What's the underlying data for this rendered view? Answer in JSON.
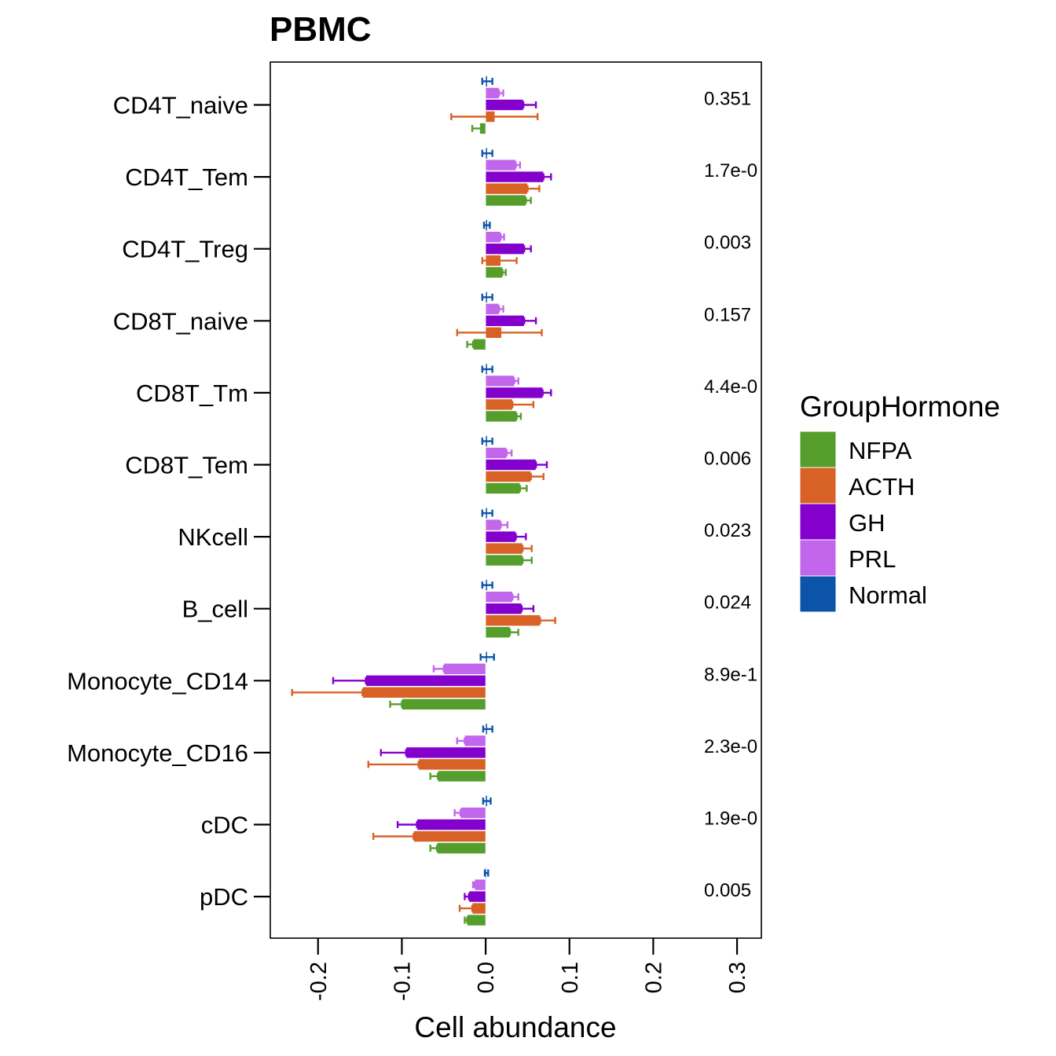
{
  "chart_data": {
    "type": "bar",
    "orientation": "horizontal",
    "title": "PBMC",
    "xlabel": "Cell abundance",
    "ylabel": "",
    "xlim": [
      -0.257,
      0.329
    ],
    "xticks": [
      -0.2,
      -0.1,
      0.0,
      0.1,
      0.2,
      0.3
    ],
    "xtick_labels": [
      "-0.2",
      "-0.1",
      "0.0",
      "0.1",
      "0.2",
      "0.3"
    ],
    "grid": false,
    "categories": [
      "CD4T_naive",
      "CD4T_Tem",
      "CD4T_Treg",
      "CD8T_naive",
      "CD8T_Tm",
      "CD8T_Tem",
      "NKcell",
      "B_cell",
      "Monocyte_CD14",
      "Monocyte_CD16",
      "cDC",
      "pDC"
    ],
    "pvalues": [
      "0.351",
      "1.7e-0",
      "0.003",
      "0.157",
      "4.4e-0",
      "0.006",
      "0.023",
      "0.024",
      "8.9e-1",
      "2.3e-0",
      "1.9e-0",
      "0.005"
    ],
    "legend": {
      "title": "GroupHormone",
      "placement": "right",
      "entries": [
        "NFPA",
        "ACTH",
        "GH",
        "PRL",
        "Normal"
      ]
    },
    "series": [
      {
        "name": "Normal",
        "color": "#0C54AA",
        "values": [
          0.002,
          0.002,
          0.002,
          0.002,
          0.002,
          0.002,
          0.002,
          0.002,
          0.002,
          0.002,
          0.002,
          0.001
        ],
        "err_low": [
          -0.004,
          -0.004,
          -0.002,
          -0.004,
          -0.004,
          -0.004,
          -0.004,
          -0.004,
          -0.006,
          -0.003,
          -0.003,
          -0.001
        ],
        "err_high": [
          0.008,
          0.008,
          0.005,
          0.008,
          0.008,
          0.008,
          0.008,
          0.008,
          0.01,
          0.008,
          0.006,
          0.003
        ]
      },
      {
        "name": "PRL",
        "color": "#C266EC",
        "values": [
          0.016,
          0.036,
          0.018,
          0.016,
          0.034,
          0.025,
          0.018,
          0.032,
          -0.05,
          -0.025,
          -0.03,
          -0.013
        ],
        "err_low": [
          0.016,
          0.036,
          0.018,
          0.016,
          0.034,
          0.025,
          0.018,
          0.032,
          -0.062,
          -0.034,
          -0.037,
          -0.015
        ],
        "err_high": [
          0.021,
          0.041,
          0.022,
          0.021,
          0.039,
          0.031,
          0.026,
          0.039,
          -0.05,
          -0.025,
          -0.03,
          -0.013
        ]
      },
      {
        "name": "GH",
        "color": "#8400CC",
        "values": [
          0.045,
          0.069,
          0.046,
          0.046,
          0.068,
          0.06,
          0.036,
          0.043,
          -0.143,
          -0.095,
          -0.082,
          -0.02
        ],
        "err_low": [
          0.045,
          0.069,
          0.046,
          0.046,
          0.068,
          0.06,
          0.036,
          0.043,
          -0.182,
          -0.125,
          -0.105,
          -0.025
        ],
        "err_high": [
          0.06,
          0.078,
          0.054,
          0.06,
          0.078,
          0.073,
          0.048,
          0.057,
          -0.143,
          -0.095,
          -0.082,
          -0.02
        ]
      },
      {
        "name": "ACTH",
        "color": "#D86226",
        "values": [
          0.011,
          0.05,
          0.018,
          0.019,
          0.032,
          0.054,
          0.044,
          0.065,
          -0.147,
          -0.08,
          -0.086,
          -0.016
        ],
        "err_low": [
          -0.041,
          0.05,
          -0.004,
          -0.034,
          0.032,
          0.054,
          0.044,
          0.065,
          -0.231,
          -0.14,
          -0.134,
          -0.031
        ],
        "err_high": [
          0.062,
          0.064,
          0.037,
          0.067,
          0.057,
          0.069,
          0.055,
          0.083,
          -0.147,
          -0.08,
          -0.086,
          -0.016
        ]
      },
      {
        "name": "NFPA",
        "color": "#559E2C",
        "values": [
          -0.007,
          0.048,
          0.02,
          -0.015,
          0.037,
          0.041,
          0.044,
          0.029,
          -0.1,
          -0.057,
          -0.058,
          -0.022
        ],
        "err_low": [
          -0.016,
          0.048,
          0.02,
          -0.022,
          0.037,
          0.041,
          0.044,
          0.029,
          -0.114,
          -0.066,
          -0.066,
          -0.025
        ],
        "err_high": [
          -0.004,
          0.054,
          0.024,
          -0.015,
          0.042,
          0.049,
          0.055,
          0.039,
          -0.1,
          -0.057,
          -0.058,
          -0.022
        ]
      }
    ]
  }
}
